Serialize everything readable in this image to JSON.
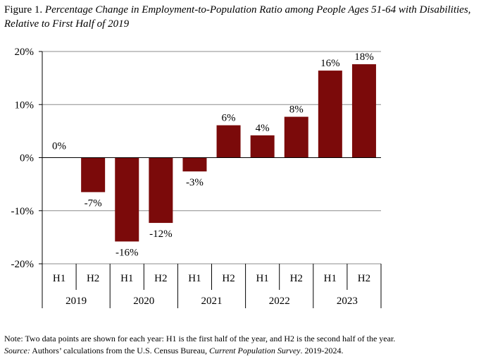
{
  "title": {
    "figure_label": "Figure 1.",
    "text": "Percentage Change in Employment-to-Population Ratio among People Ages 51-64 with Disabilities, Relative to First Half of 2019"
  },
  "chart_data": {
    "type": "bar",
    "categories": [
      "H1",
      "H2",
      "H1",
      "H2",
      "H1",
      "H2",
      "H1",
      "H2",
      "H1",
      "H2"
    ],
    "groups": [
      {
        "label": "2019",
        "span": 2
      },
      {
        "label": "2020",
        "span": 2
      },
      {
        "label": "2021",
        "span": 2
      },
      {
        "label": "2022",
        "span": 2
      },
      {
        "label": "2023",
        "span": 2
      }
    ],
    "values": [
      0,
      -6.5,
      -15.8,
      -12.3,
      -2.6,
      6.1,
      4.2,
      7.7,
      16.4,
      17.6
    ],
    "data_labels": [
      "0%",
      "-7%",
      "-16%",
      "-12%",
      "-3%",
      "6%",
      "4%",
      "8%",
      "16%",
      "18%"
    ],
    "ylim": [
      -20,
      20
    ],
    "yticks": [
      20,
      10,
      0,
      -10,
      -20
    ],
    "ytick_labels": [
      "20%",
      "10%",
      "0%",
      "-10%",
      "-20%"
    ],
    "grid": true,
    "colors": {
      "bar": "#7b0a0a",
      "grid": "#8c8c8c",
      "axis": "#000000"
    }
  },
  "note": {
    "line1": "Note: Two data points are shown for each year: H1 is the first half of the year, and H2 is the second half of the year.",
    "source_label": "Source:",
    "source_text_a": " Authors’ calculations from the U.S. Census Bureau, ",
    "source_title": "Current Population Survey",
    "source_text_b": ". 2019-2024."
  }
}
